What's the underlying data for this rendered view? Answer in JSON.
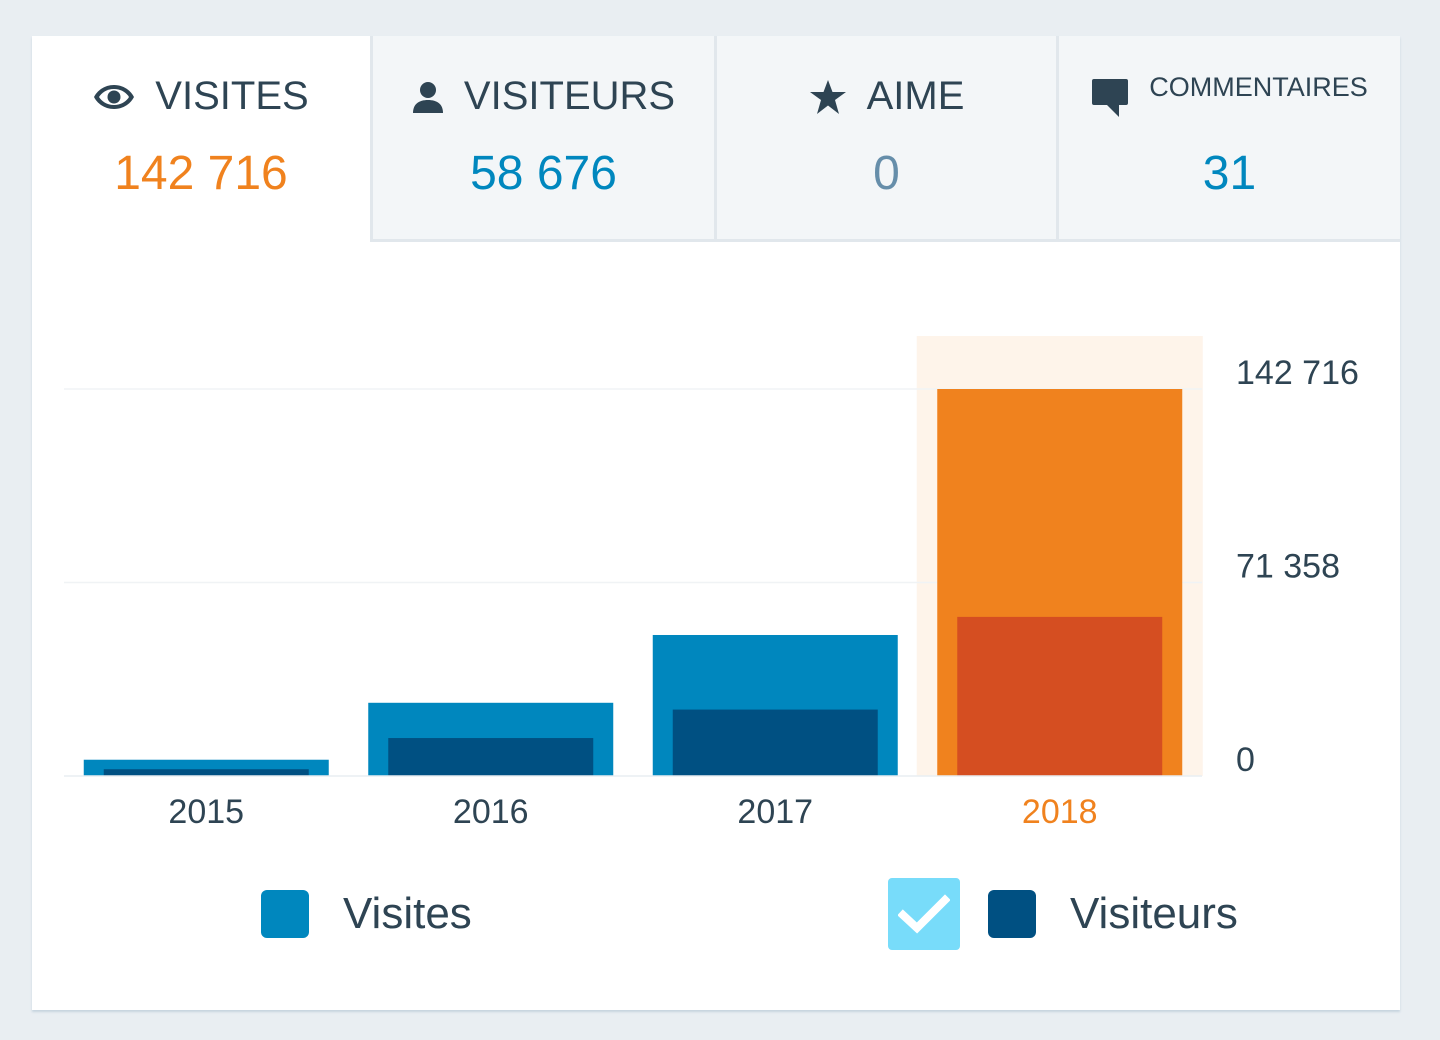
{
  "tabs": [
    {
      "label": "VISITES",
      "value": "142 716",
      "icon": "eye-icon"
    },
    {
      "label": "VISITEURS",
      "value": "58 676",
      "icon": "person-icon"
    },
    {
      "label": "AIME",
      "value": "0",
      "icon": "star-icon"
    },
    {
      "label": "COMMENTAIRES",
      "value": "31",
      "icon": "comment-icon"
    }
  ],
  "colors": {
    "visites": "#0087be",
    "visiteurs": "#005082",
    "highlight_visites": "#f0821e",
    "highlight_visiteurs": "#d54e21",
    "highlight_band": "#fef4ea",
    "tick_text": "#2e4453",
    "highlight_text": "#f0821e"
  },
  "chart_data": {
    "type": "bar",
    "categories": [
      "2015",
      "2016",
      "2017",
      "2018"
    ],
    "series": [
      {
        "name": "Visites",
        "values": [
          6000,
          27000,
          52000,
          142716
        ]
      },
      {
        "name": "Visiteurs",
        "values": [
          2500,
          14000,
          24500,
          58676
        ]
      }
    ],
    "highlighted_category": "2018",
    "y_ticks": [
      "0",
      "71 358",
      "142 716"
    ],
    "y_tick_values": [
      0,
      71358,
      142716
    ],
    "ylim": [
      0,
      142716
    ],
    "grid": true,
    "legend_position": "bottom"
  },
  "legend": {
    "visites_label": "Visites",
    "visiteurs_label": "Visiteurs",
    "visiteurs_checked": true
  }
}
